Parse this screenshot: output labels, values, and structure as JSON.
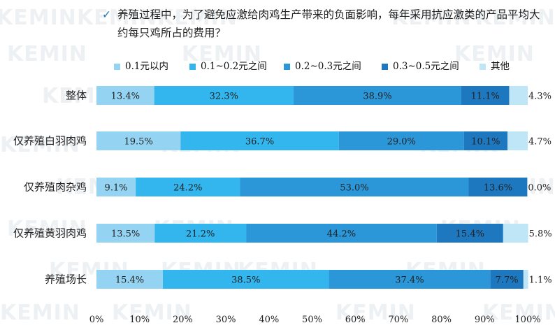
{
  "title": {
    "checkmark": "✓",
    "text": "养殖过程中，为了避免应激给肉鸡生产带来的负面影响，每年采用抗应激类的产品平均大约每只鸡所占的费用？"
  },
  "watermark_text": "KEMIN",
  "chart_data": {
    "type": "bar",
    "orientation": "horizontal",
    "stacked": true,
    "categories": [
      "整体",
      "仅养殖白羽肉鸡",
      "仅养殖肉杂鸡",
      "仅养殖黄羽肉鸡",
      "养殖场长"
    ],
    "series": [
      {
        "name": "0.1元以内",
        "color": "#94d4f2",
        "values": [
          13.4,
          19.5,
          9.1,
          13.5,
          15.4
        ],
        "labels": [
          "13.4%",
          "19.5%",
          "9.1%",
          "13.5%",
          "15.4%"
        ]
      },
      {
        "name": "0.1~0.2元之间",
        "color": "#33b5ed",
        "values": [
          32.3,
          36.7,
          24.2,
          21.2,
          38.5
        ],
        "labels": [
          "32.3%",
          "36.7%",
          "24.2%",
          "21.2%",
          "38.5%"
        ]
      },
      {
        "name": "0.2~0.3元之间",
        "color": "#2b97d9",
        "values": [
          38.9,
          29.0,
          53.0,
          44.2,
          37.4
        ],
        "labels": [
          "38.9%",
          "29.0%",
          "53.0%",
          "44.2%",
          "37.4%"
        ]
      },
      {
        "name": "0.3~0.5元之间",
        "color": "#1e78c0",
        "values": [
          11.1,
          10.1,
          13.6,
          15.4,
          7.7
        ],
        "labels": [
          "11.1%",
          "10.1%",
          "13.6%",
          "15.4%",
          "7.7%"
        ]
      },
      {
        "name": "其他",
        "color": "#bfe6f7",
        "values": [
          4.3,
          4.7,
          0.0,
          5.8,
          1.1
        ],
        "labels": [
          "4.3%",
          "4.7%",
          "0.0%",
          "5.8%",
          "1.1%"
        ]
      }
    ],
    "xlim": [
      0,
      100
    ],
    "xticks": [
      "0%",
      "10%",
      "20%",
      "30%",
      "40%",
      "50%",
      "60%",
      "70%",
      "80%",
      "90%",
      "100%"
    ],
    "legend_position": "top",
    "grid": false
  }
}
